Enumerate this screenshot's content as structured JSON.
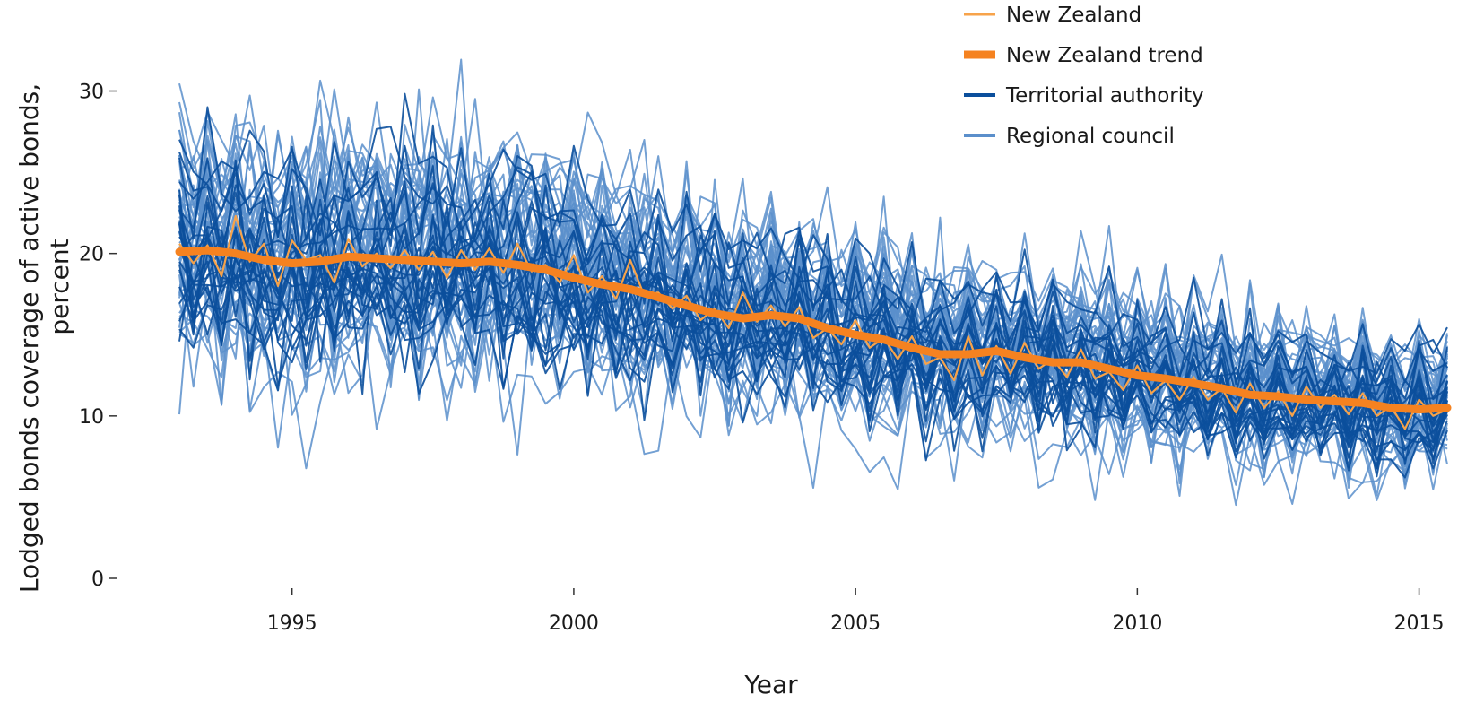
{
  "chart_data": {
    "type": "line",
    "title": "",
    "xlabel": "Year",
    "ylabel_lines": [
      "Lodged bonds coverage of active bonds,",
      "percent"
    ],
    "xlim": [
      1993.0,
      2015.5
    ],
    "ylim": [
      0,
      34.5
    ],
    "x_ticks": [
      1995,
      2000,
      2005,
      2010,
      2015
    ],
    "y_ticks": [
      0,
      10,
      20,
      30
    ],
    "grid": false,
    "legend_position": "top-right",
    "legend": [
      {
        "label": "New Zealand",
        "color": "#f7a34a",
        "style": "thin"
      },
      {
        "label": "New Zealand trend",
        "color": "#f58220",
        "style": "thick"
      },
      {
        "label": "Territorial authority",
        "color": "#0b4f9c",
        "style": "medium"
      },
      {
        "label": "Regional council",
        "color": "#5b8fcb",
        "style": "medium"
      }
    ],
    "trend_series": {
      "name": "New Zealand trend",
      "color": "#f58220",
      "x": [
        1993.0,
        1993.5,
        1994.0,
        1994.5,
        1995.0,
        1995.5,
        1996.0,
        1996.5,
        1997.0,
        1997.5,
        1998.0,
        1998.5,
        1999.0,
        1999.5,
        2000.0,
        2000.5,
        2001.0,
        2001.5,
        2002.0,
        2002.5,
        2003.0,
        2003.5,
        2004.0,
        2004.5,
        2005.0,
        2005.5,
        2006.0,
        2006.5,
        2007.0,
        2007.5,
        2008.0,
        2008.5,
        2009.0,
        2009.5,
        2010.0,
        2010.5,
        2011.0,
        2011.5,
        2012.0,
        2012.5,
        2013.0,
        2013.5,
        2014.0,
        2014.5,
        2015.0,
        2015.5
      ],
      "y": [
        20.1,
        20.2,
        20.0,
        19.6,
        19.4,
        19.5,
        19.8,
        19.7,
        19.6,
        19.5,
        19.4,
        19.5,
        19.3,
        19.0,
        18.5,
        18.1,
        17.8,
        17.3,
        16.8,
        16.3,
        16.0,
        16.2,
        16.0,
        15.4,
        15.0,
        14.7,
        14.2,
        13.8,
        13.8,
        14.0,
        13.6,
        13.3,
        13.3,
        12.9,
        12.5,
        12.3,
        12.0,
        11.7,
        11.3,
        11.2,
        11.0,
        10.9,
        10.8,
        10.5,
        10.4,
        10.5
      ]
    },
    "national_series": {
      "name": "New Zealand",
      "color": "#f7a34a",
      "x": [
        1993.0,
        1993.25,
        1993.5,
        1993.75,
        1994.0,
        1994.25,
        1994.5,
        1994.75,
        1995.0,
        1995.25,
        1995.5,
        1995.75,
        1996.0,
        1996.25,
        1996.5,
        1996.75,
        1997.0,
        1997.25,
        1997.5,
        1997.75,
        1998.0,
        1998.25,
        1998.5,
        1998.75,
        1999.0,
        1999.25,
        1999.5,
        1999.75,
        2000.0,
        2000.25,
        2000.5,
        2000.75,
        2001.0,
        2001.25,
        2001.5,
        2001.75,
        2002.0,
        2002.25,
        2002.5,
        2002.75,
        2003.0,
        2003.25,
        2003.5,
        2003.75,
        2004.0,
        2004.25,
        2004.5,
        2004.75,
        2005.0,
        2005.25,
        2005.5,
        2005.75,
        2006.0,
        2006.25,
        2006.5,
        2006.75,
        2007.0,
        2007.25,
        2007.5,
        2007.75,
        2008.0,
        2008.25,
        2008.5,
        2008.75,
        2009.0,
        2009.25,
        2009.5,
        2009.75,
        2010.0,
        2010.25,
        2010.5,
        2010.75,
        2011.0,
        2011.25,
        2011.5,
        2011.75,
        2012.0,
        2012.25,
        2012.5,
        2012.75,
        2013.0,
        2013.25,
        2013.5,
        2013.75,
        2014.0,
        2014.25,
        2014.5,
        2014.75,
        2015.0,
        2015.25,
        2015.5
      ],
      "y": [
        20.6,
        19.4,
        20.5,
        18.6,
        22.3,
        19.5,
        20.6,
        18.0,
        20.8,
        19.6,
        19.9,
        18.2,
        20.9,
        19.2,
        20.0,
        19.1,
        20.2,
        19.0,
        20.1,
        18.5,
        20.2,
        19.0,
        20.3,
        18.8,
        20.6,
        18.9,
        19.3,
        18.2,
        19.9,
        17.6,
        18.6,
        17.2,
        19.6,
        17.4,
        17.6,
        16.6,
        17.4,
        15.9,
        16.6,
        15.4,
        17.6,
        15.8,
        16.8,
        15.5,
        16.7,
        14.8,
        15.4,
        14.4,
        15.9,
        14.2,
        14.8,
        13.5,
        14.9,
        13.2,
        13.6,
        12.2,
        14.9,
        12.5,
        14.3,
        12.6,
        14.5,
        12.9,
        13.5,
        12.4,
        14.1,
        12.3,
        12.7,
        11.6,
        13.1,
        11.4,
        12.2,
        11.0,
        12.4,
        11.0,
        11.7,
        10.2,
        12.0,
        10.5,
        11.5,
        10.0,
        11.8,
        10.5,
        11.3,
        10.1,
        11.4,
        10.0,
        10.6,
        9.2,
        11.0,
        10.0,
        10.4
      ]
    },
    "area_series_count": {
      "territorial_authority": 24,
      "regional_council": 48
    }
  }
}
